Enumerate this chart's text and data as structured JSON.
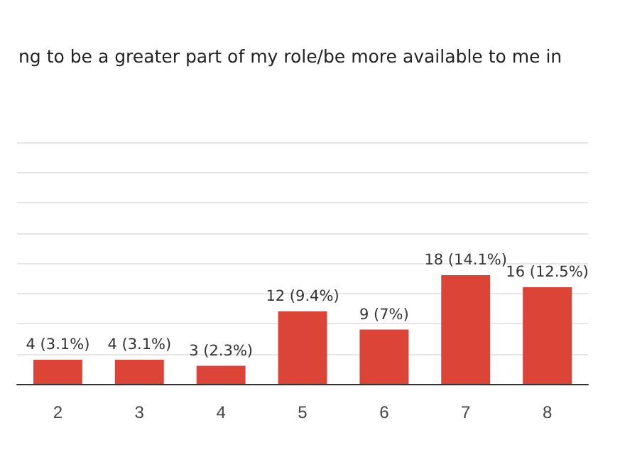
{
  "chart_data": {
    "type": "bar",
    "title": "ng to be a greater part of my role/be more available to me in",
    "categories": [
      "2",
      "3",
      "4",
      "5",
      "6",
      "7",
      "8"
    ],
    "values": [
      4,
      4,
      3,
      12,
      9,
      18,
      16
    ],
    "value_labels": [
      "4 (3.1%)",
      "4 (3.1%)",
      "3 (2.3%)",
      "12 (9.4%)",
      "9 (7%)",
      "18 (14.1%)",
      "16 (12.5%)"
    ],
    "color": "#db4437",
    "ylim": [
      0,
      40
    ],
    "yticks": [
      {
        "value": 0,
        "label": null
      },
      {
        "value": 5,
        "label": null
      },
      {
        "value": 10,
        "label": null
      },
      {
        "value": 15,
        "label": null
      },
      {
        "value": 20,
        "label": null
      },
      {
        "value": 25,
        "label": null
      },
      {
        "value": 30,
        "label": null
      },
      {
        "value": 35,
        "label": null
      },
      {
        "value": 40,
        "label": null
      }
    ],
    "grid": true,
    "tick_labels": "x"
  }
}
